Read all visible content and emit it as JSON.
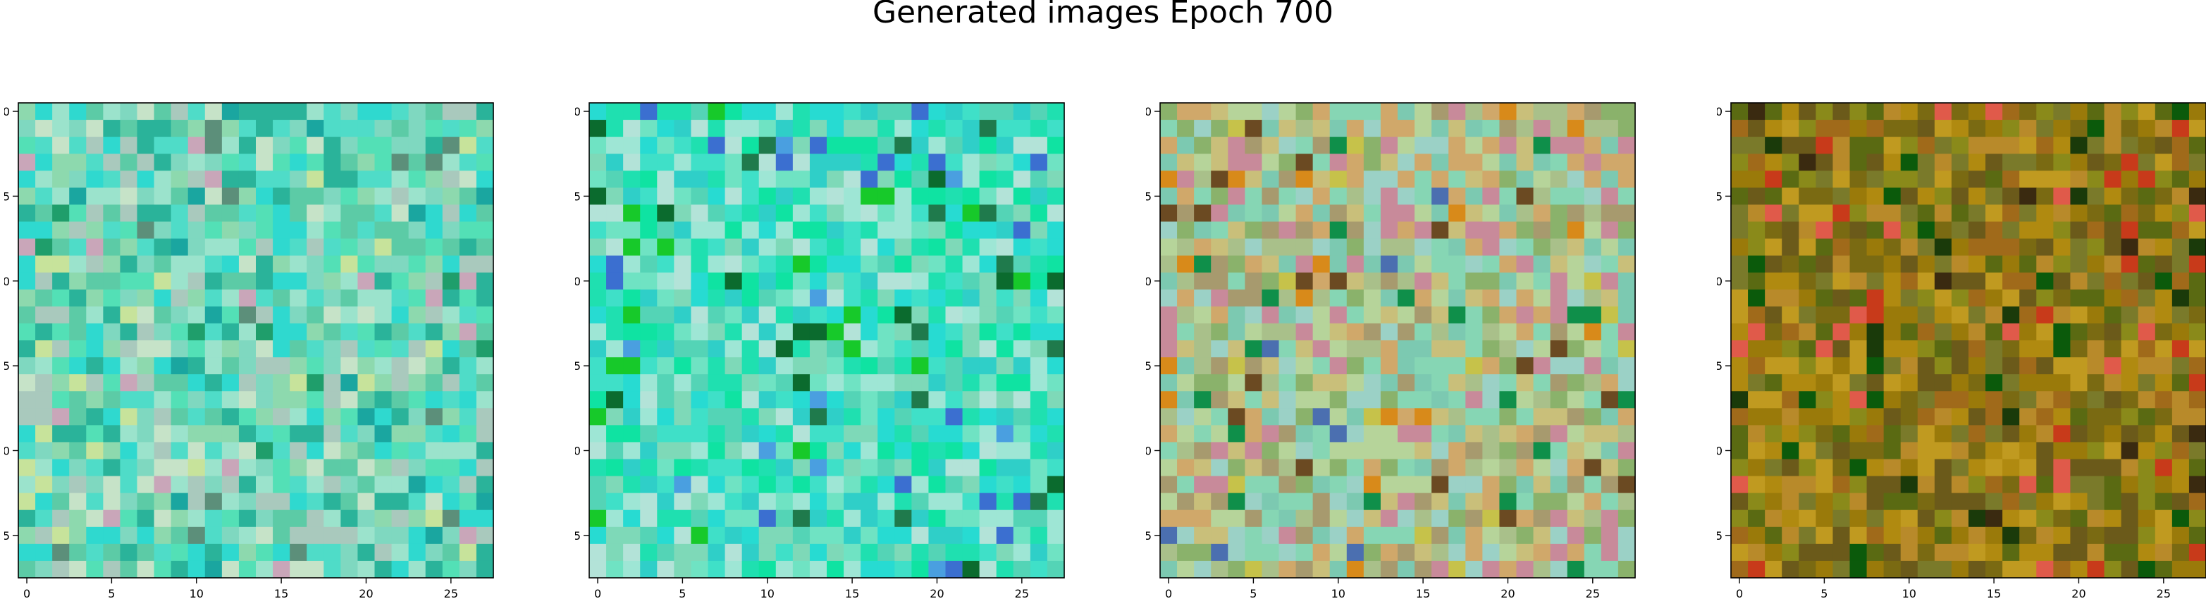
{
  "title": "Generated images Epoch 700",
  "chart_data": [
    {
      "type": "heatmap",
      "title": "",
      "xlabel": "",
      "ylabel": "",
      "size": [
        28,
        28
      ],
      "xlim": [
        -0.5,
        27.5
      ],
      "ylim": [
        27.5,
        -0.5
      ],
      "xticks": [
        0,
        5,
        10,
        15,
        20,
        25
      ],
      "yticks": [
        0,
        5,
        10,
        15,
        20,
        25
      ],
      "grid": false,
      "palette": [
        "#7fd8c0",
        "#4fdcc8",
        "#2fd9cf",
        "#9be3cc",
        "#c6e3c8",
        "#5ccba6",
        "#2ab39a",
        "#a9c9bd",
        "#8dd9ae",
        "#53e0b6"
      ],
      "accents": [
        "#c9a6b9",
        "#1f9e6b",
        "#c7e39b",
        "#1aa6a0",
        "#5c8f7a"
      ],
      "description": "teal and mint pixel noise"
    },
    {
      "type": "heatmap",
      "title": "",
      "xlabel": "",
      "ylabel": "",
      "size": [
        28,
        28
      ],
      "xlim": [
        -0.5,
        27.5
      ],
      "ylim": [
        27.5,
        -0.5
      ],
      "xticks": [
        0,
        5,
        10,
        15,
        20,
        25
      ],
      "yticks": [
        0,
        5,
        10,
        15,
        20,
        25
      ],
      "grid": false,
      "palette": [
        "#3fe0c8",
        "#27dbd2",
        "#6fe3c3",
        "#9ee6d5",
        "#1fe0b0",
        "#54d4b6",
        "#b3e3d8",
        "#2fcfc8",
        "#7ed9b8",
        "#0fe3a2"
      ],
      "accents": [
        "#1f7a4c",
        "#3b6fd0",
        "#17c92a",
        "#0b6b2e",
        "#4a9fe0"
      ],
      "description": "cyan and green pixel noise"
    },
    {
      "type": "heatmap",
      "title": "",
      "xlabel": "",
      "ylabel": "",
      "size": [
        28,
        28
      ],
      "xlim": [
        -0.5,
        27.5
      ],
      "ylim": [
        27.5,
        -0.5
      ],
      "xticks": [
        0,
        5,
        10,
        15,
        20,
        25
      ],
      "yticks": [
        0,
        5,
        10,
        15,
        20,
        25
      ],
      "grid": false,
      "palette": [
        "#a9c08a",
        "#86d6b4",
        "#c9bf7a",
        "#8ab26b",
        "#b6d49a",
        "#d0a86a",
        "#7cc9b1",
        "#a79a6e",
        "#c88a9a",
        "#9bd1c6"
      ],
      "accents": [
        "#d88a1a",
        "#0f8f4a",
        "#4b6fb0",
        "#6b4a22",
        "#c6c24a"
      ],
      "description": "olive mint and ochre pixel noise"
    },
    {
      "type": "heatmap",
      "title": "",
      "xlabel": "",
      "ylabel": "",
      "size": [
        28,
        28
      ],
      "xlim": [
        -0.5,
        27.5
      ],
      "ylim": [
        27.5,
        -0.5
      ],
      "xticks": [
        0,
        5,
        10,
        15,
        20,
        25
      ],
      "yticks": [
        0,
        5,
        10,
        15,
        20,
        25
      ],
      "grid": false,
      "palette": [
        "#7a6a12",
        "#9a7a0a",
        "#b08a10",
        "#6b5a1a",
        "#8a8a1a",
        "#c09a20",
        "#5a6a12",
        "#a06a1a",
        "#7a7a2a",
        "#b88a2a"
      ],
      "accents": [
        "#0b5a0b",
        "#1a3a0a",
        "#c83a1a",
        "#3a2a10",
        "#e05a4a"
      ],
      "description": "olive brown and mustard pixel noise"
    }
  ]
}
